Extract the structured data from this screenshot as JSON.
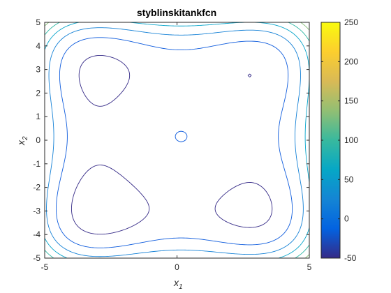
{
  "chart_data": {
    "type": "contour",
    "title": "styblinskitankfcn",
    "xlabel": "x",
    "xlabel_subscript": "1",
    "ylabel": "x",
    "ylabel_subscript": "2",
    "xlim": [
      -5,
      5
    ],
    "ylim": [
      -5,
      5
    ],
    "xticks": [
      "-5",
      "0",
      "5"
    ],
    "yticks": [
      "5",
      "4",
      "3",
      "2",
      "1",
      "0",
      "-1",
      "-2",
      "-3",
      "-4",
      "-5"
    ],
    "colorbar": {
      "colormap": "parula",
      "range": [
        -50,
        250
      ],
      "ticks": [
        "250",
        "200",
        "150",
        "100",
        "50",
        "0",
        "-50"
      ]
    },
    "grid": false,
    "contour_levels": [
      -50,
      0,
      50,
      100,
      150,
      200,
      250
    ],
    "colors": {
      "level_-50": "#352a87",
      "level_0": "#0f5cdd",
      "level_50": "#1481d6",
      "level_100": "#06a4ca",
      "level_150": "#2eb7a4",
      "level_200": "#87bf77",
      "level_250": "#d1bb59"
    }
  }
}
